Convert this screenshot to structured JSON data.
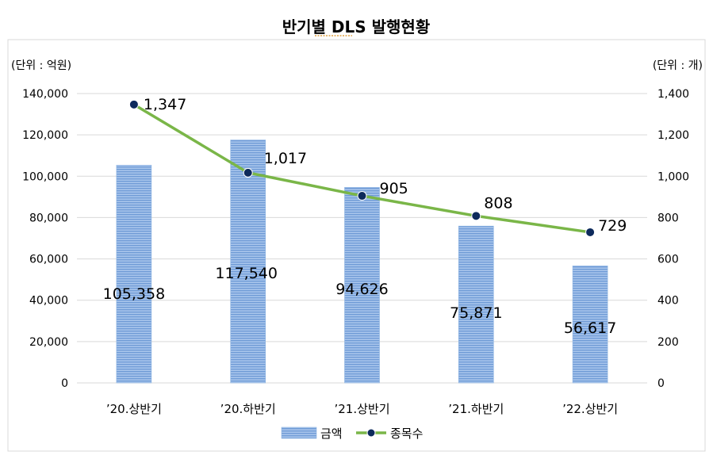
{
  "chart_data": {
    "type": "bar-line",
    "title": "반기별 DLS 발행현황",
    "left_unit_label": "(단위 : 억원)",
    "right_unit_label": "(단위 : 개)",
    "categories": [
      "’20.상반기",
      "’20.하반기",
      "’21.상반기",
      "’21.하반기",
      "’22.상반기"
    ],
    "y_left_ticks": [
      "140,000",
      "120,000",
      "100,000",
      "80,000",
      "60,000",
      "40,000",
      "20,000",
      "0"
    ],
    "y_right_ticks": [
      "1,400",
      "1,200",
      "1,000",
      "800",
      "600",
      "400",
      "200",
      "0"
    ],
    "ylim_left": [
      0,
      140000
    ],
    "ylim_right": [
      0,
      1400
    ],
    "series": [
      {
        "name": "금액",
        "type": "bar",
        "axis": "left",
        "values": [
          105358,
          117540,
          94626,
          75871,
          56617
        ],
        "labels": [
          "105,358",
          "117,540",
          "94,626",
          "75,871",
          "56,617"
        ]
      },
      {
        "name": "종목수",
        "type": "line",
        "axis": "right",
        "values": [
          1347,
          1017,
          905,
          808,
          729
        ],
        "labels": [
          "1,347",
          "1,017",
          "905",
          "808",
          "729"
        ]
      }
    ],
    "grid": true,
    "legend_position": "bottom",
    "colors": {
      "bar_fill": "#8fb4e3",
      "bar_stripe": "#5b8fd0",
      "line": "#7ab648",
      "marker": "#0d2a5c",
      "grid": "#d9d9d9",
      "frame": "#d9d9d9",
      "title_underline": "#e0a040"
    }
  }
}
